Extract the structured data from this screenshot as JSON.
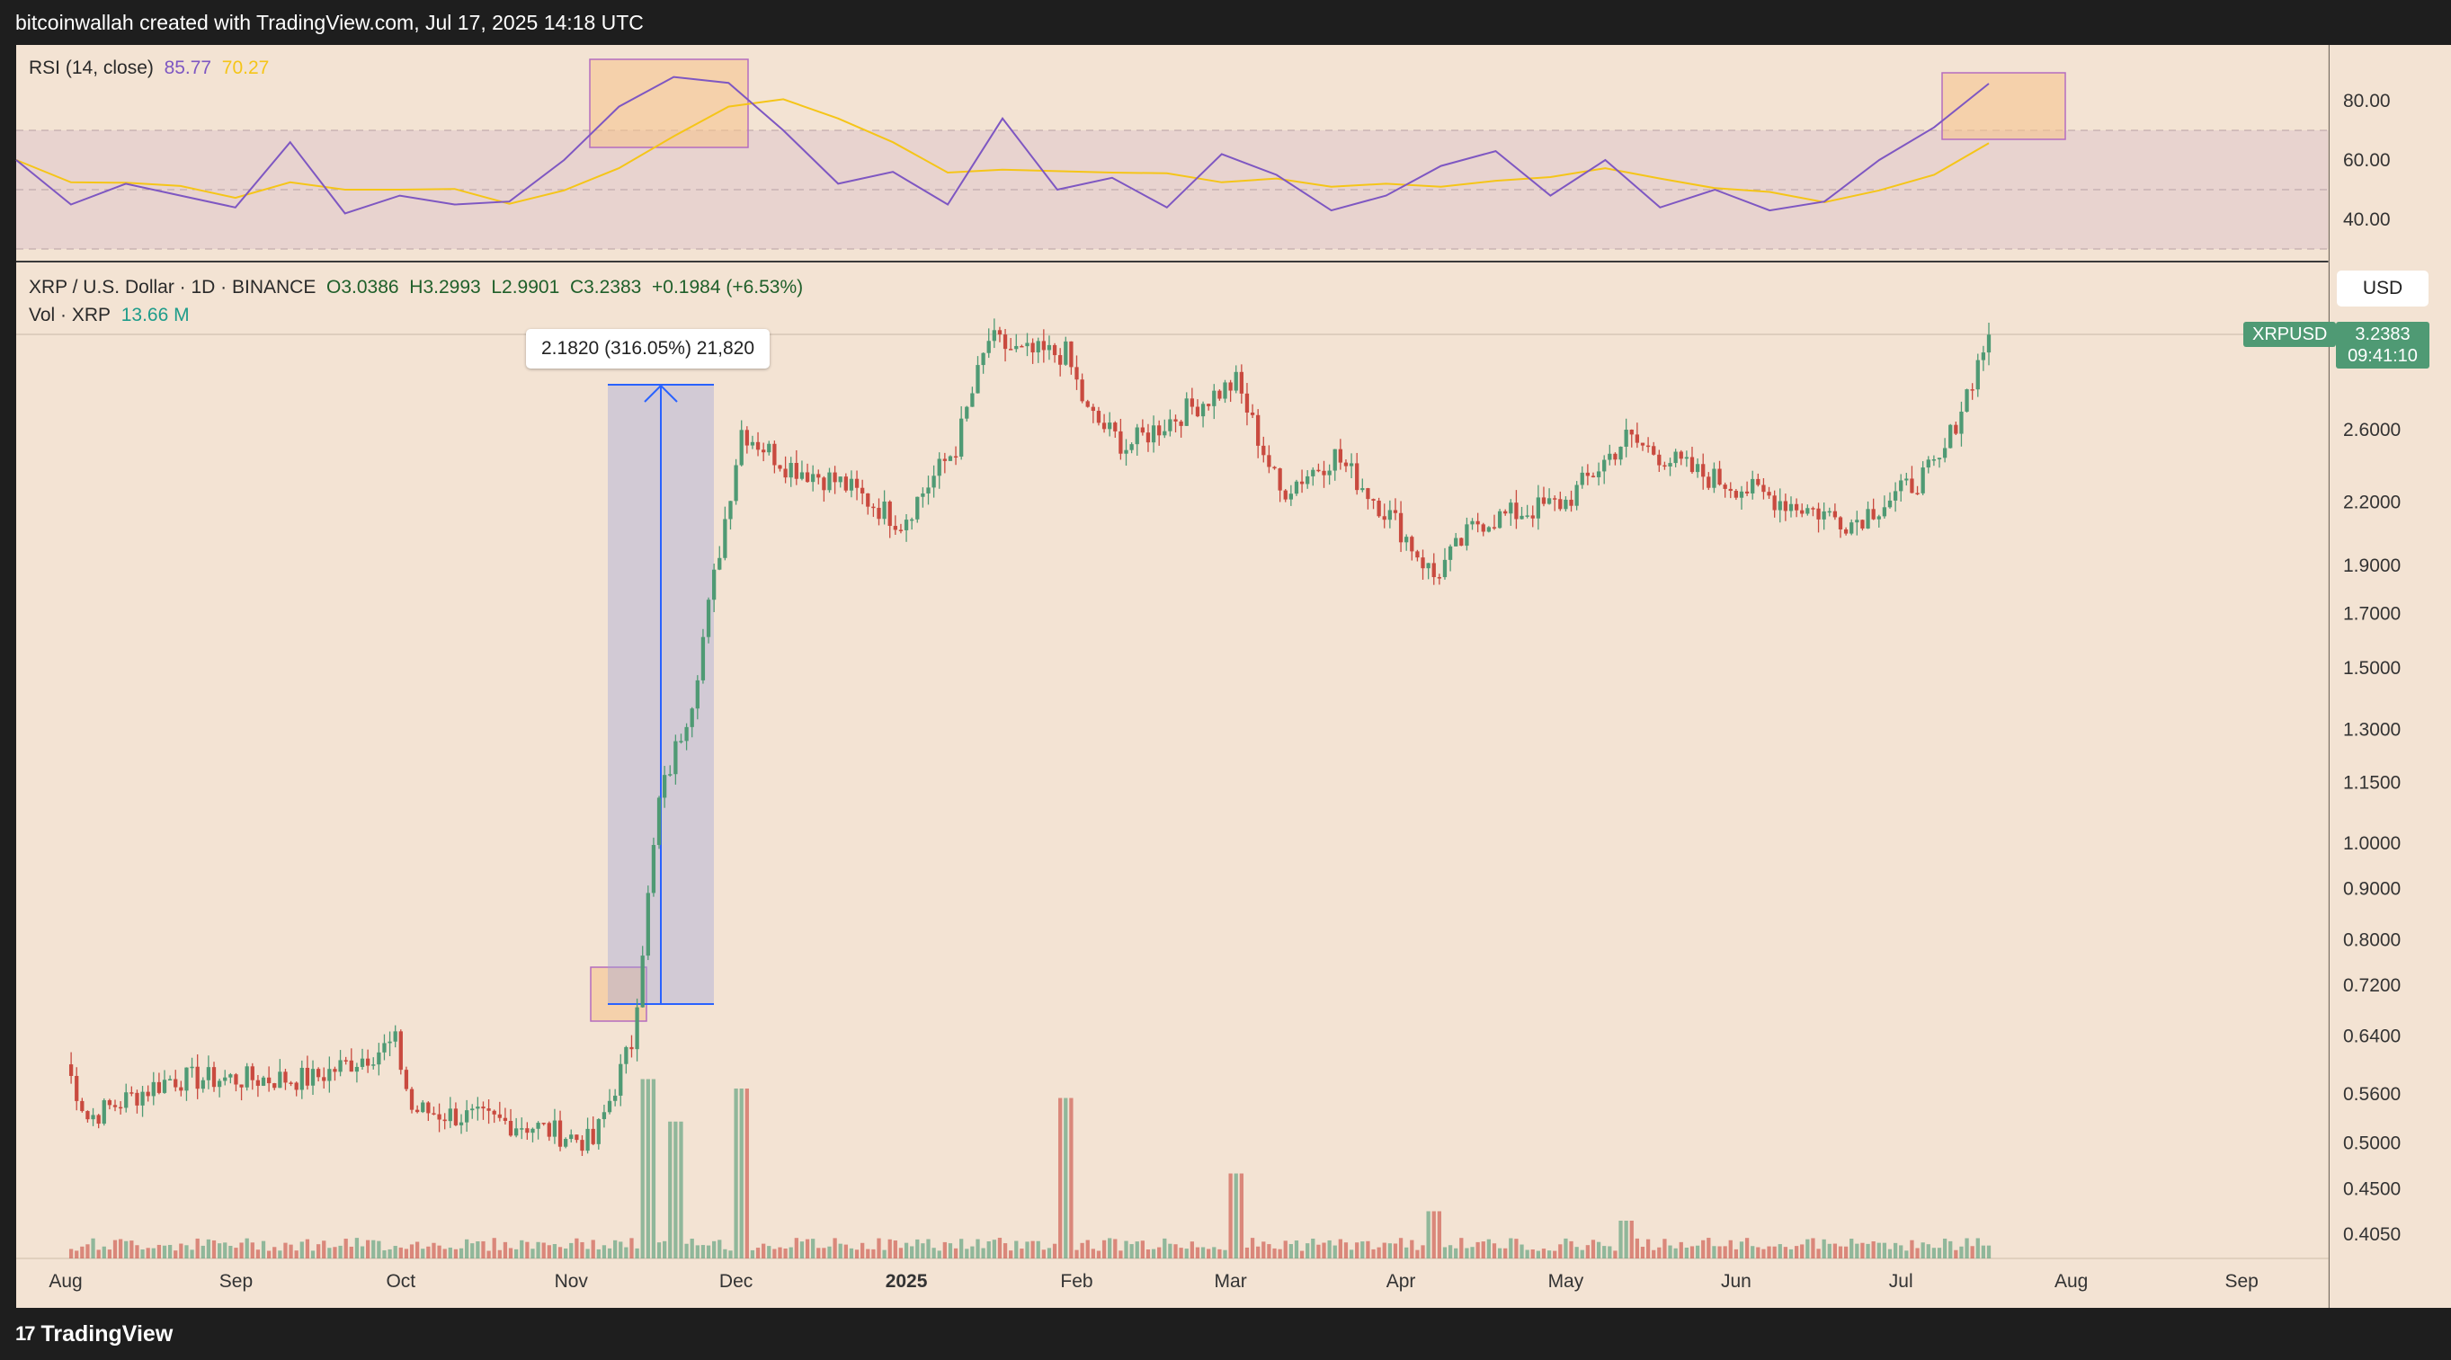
{
  "header": {
    "attribution": "bitcoinwallah created with TradingView.com, Jul 17, 2025 14:18 UTC"
  },
  "footer": {
    "brand": "TradingView",
    "brand_mark": "17"
  },
  "legend": {
    "symbol": "XRP / U.S. Dollar · 1D · BINANCE",
    "open": "O3.0386",
    "high": "H3.2993",
    "low": "L2.9901",
    "close": "C3.2383",
    "change": "+0.1984 (+6.53%)",
    "volume_label": "Vol · XRP",
    "volume_value": "13.66 M"
  },
  "rsi_legend": {
    "label": "RSI (14, close)",
    "value": "85.77",
    "ma_value": "70.27"
  },
  "measure": {
    "label": "2.1820 (316.05%) 21,820"
  },
  "price_scale": {
    "currency": "USD",
    "symbol_tag": "XRPUSD",
    "last_price": "3.2383",
    "countdown": "09:41:10",
    "ticks": [
      "2.6000",
      "2.2000",
      "1.9000",
      "1.7000",
      "1.5000",
      "1.3000",
      "1.1500",
      "1.0000",
      "0.9000",
      "0.8000",
      "0.7200",
      "0.6400",
      "0.5600",
      "0.5000",
      "0.4500",
      "0.4050"
    ]
  },
  "rsi_scale": {
    "ticks": [
      "80.00",
      "60.00",
      "40.00"
    ]
  },
  "time_axis": [
    "Aug",
    "Sep",
    "Oct",
    "Nov",
    "Dec",
    "2025",
    "Feb",
    "Mar",
    "Apr",
    "May",
    "Jun",
    "Jul",
    "Aug",
    "Sep"
  ],
  "colors": {
    "up": "#4f9a74",
    "down": "#c94a3f",
    "rsi": "#7e57c2",
    "rsi_ma": "#f5c518",
    "background": "#f3e3d3",
    "measure": "#2962ff"
  },
  "chart_data": [
    {
      "type": "line",
      "title": "XRP / U.S. Dollar · 1D · BINANCE",
      "scale": "log",
      "x": [
        "2024-08-01",
        "2024-08-05",
        "2024-08-20",
        "2024-09-15",
        "2024-09-30",
        "2024-10-03",
        "2024-10-25",
        "2024-11-05",
        "2024-11-12",
        "2024-11-17",
        "2024-11-23",
        "2024-12-02",
        "2024-12-10",
        "2024-12-20",
        "2024-12-31",
        "2025-01-10",
        "2025-01-16",
        "2025-01-22",
        "2025-01-30",
        "2025-02-03",
        "2025-02-10",
        "2025-02-20",
        "2025-03-02",
        "2025-03-10",
        "2025-03-20",
        "2025-03-31",
        "2025-04-07",
        "2025-04-15",
        "2025-05-01",
        "2025-05-12",
        "2025-05-25",
        "2025-06-10",
        "2025-06-22",
        "2025-07-01",
        "2025-07-08",
        "2025-07-17"
      ],
      "series": [
        {
          "values": [
            0.6,
            0.53,
            0.58,
            0.58,
            0.63,
            0.54,
            0.52,
            0.5,
            0.63,
            1.1,
            1.4,
            2.6,
            2.4,
            2.3,
            2.1,
            2.5,
            3.2,
            3.1,
            3.1,
            2.7,
            2.5,
            2.7,
            2.9,
            2.25,
            2.45,
            2.1,
            1.85,
            2.1,
            2.2,
            2.55,
            2.35,
            2.2,
            2.1,
            2.25,
            2.4,
            3.2383
          ]
        }
      ],
      "ylim": [
        0.38,
        3.6
      ]
    },
    {
      "type": "bar",
      "title": "Vol · XRP",
      "x": [
        "2024-11-15",
        "2024-11-20",
        "2024-12-02",
        "2025-01-30",
        "2025-03-02",
        "2025-04-07",
        "2025-05-12",
        "2025-07-17"
      ],
      "series": [
        {
          "values": [
            190,
            145,
            180,
            170,
            90,
            50,
            40,
            13.66
          ]
        }
      ],
      "units": "M"
    },
    {
      "type": "line",
      "title": "RSI (14, close)",
      "series": [
        {
          "name": "RSI",
          "values": [
            60,
            45,
            52,
            48,
            44,
            66,
            42,
            48,
            45,
            46,
            60,
            78,
            88,
            86,
            70,
            52,
            56,
            45,
            74,
            50,
            54,
            44,
            62,
            55,
            43,
            48,
            58,
            63,
            48,
            60,
            44,
            50,
            43,
            46,
            60,
            71,
            85.77
          ]
        }
      ],
      "ylim": [
        20,
        100
      ]
    }
  ]
}
